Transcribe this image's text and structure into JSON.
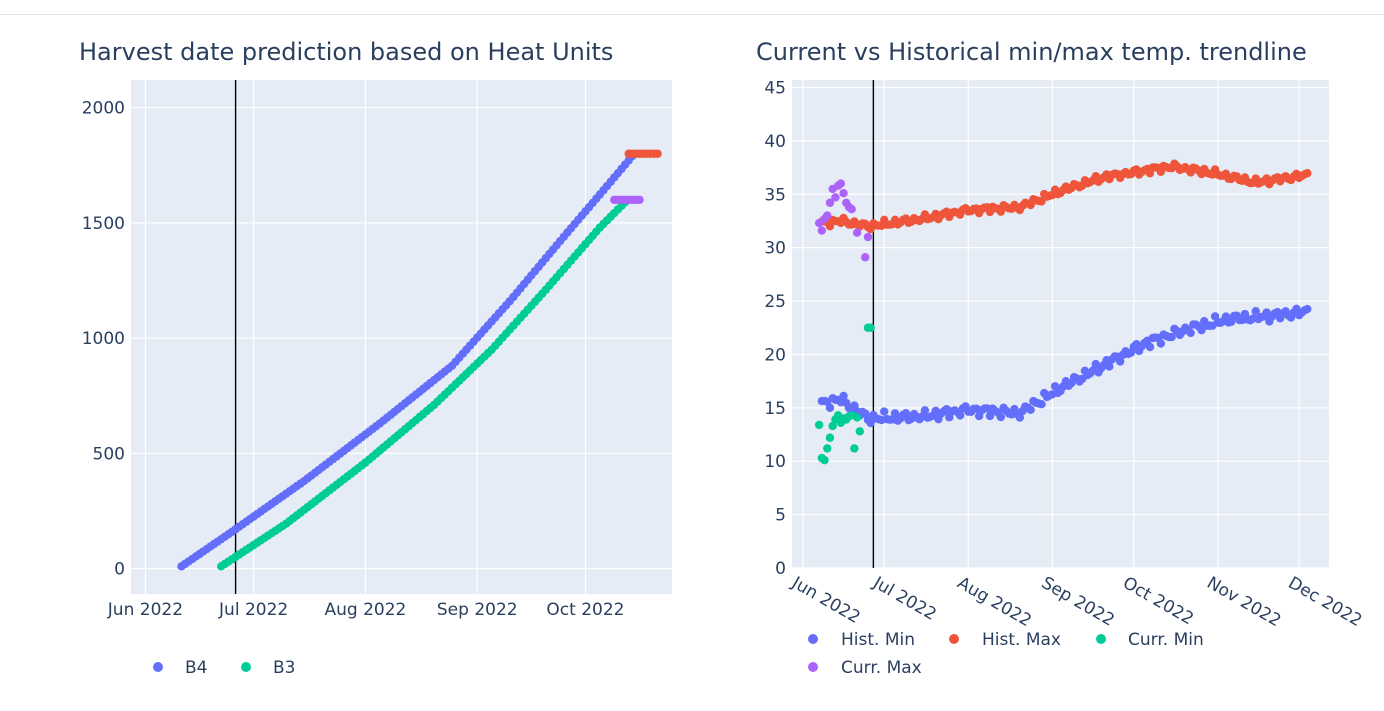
{
  "colors": {
    "plot_bg": "#e5ecf6",
    "grid": "#ffffff",
    "text": "#2a3f5f",
    "b4": "#636efa",
    "b3": "#00cc96",
    "hist_min": "#636efa",
    "hist_max": "#ef553b",
    "curr_min": "#00cc96",
    "curr_max": "#ab63fa",
    "marker_red": "#ef553b",
    "marker_purple": "#ab63fa"
  },
  "chart_data": [
    {
      "id": "heat_units",
      "type": "scatter",
      "title": "Harvest date prediction based on Heat Units",
      "x_type": "date",
      "x_range": [
        "2022-05-28",
        "2022-10-25"
      ],
      "ylim": [
        -110,
        2000
      ],
      "x_ticks": [
        {
          "date": "2022-06-01",
          "label": "Jun 2022"
        },
        {
          "date": "2022-07-01",
          "label": "Jul 2022"
        },
        {
          "date": "2022-08-01",
          "label": "Aug 2022"
        },
        {
          "date": "2022-09-01",
          "label": "Sep 2022"
        },
        {
          "date": "2022-10-01",
          "label": "Oct 2022"
        }
      ],
      "y_ticks": [
        0,
        500,
        1000,
        1500,
        2000
      ],
      "grid": true,
      "vline": "2022-06-26",
      "legend_position": "bottom-left",
      "series": [
        {
          "name": "B4",
          "color_key": "b4",
          "start": "2022-06-11",
          "points": [
            [
              "2022-06-11",
              10
            ],
            [
              "2022-06-25",
              160
            ],
            [
              "2022-07-15",
              380
            ],
            [
              "2022-08-05",
              630
            ],
            [
              "2022-08-25",
              880
            ],
            [
              "2022-09-10",
              1160
            ],
            [
              "2022-09-25",
              1440
            ],
            [
              "2022-10-07",
              1660
            ],
            [
              "2022-10-14",
              1790
            ]
          ]
        },
        {
          "name": "B3",
          "color_key": "b3",
          "start": "2022-06-22",
          "points": [
            [
              "2022-06-22",
              10
            ],
            [
              "2022-07-10",
              195
            ],
            [
              "2022-08-01",
              460
            ],
            [
              "2022-08-20",
              710
            ],
            [
              "2022-09-05",
              950
            ],
            [
              "2022-09-20",
              1210
            ],
            [
              "2022-10-05",
              1480
            ],
            [
              "2022-10-12",
              1590
            ]
          ]
        }
      ],
      "markers": [
        {
          "color_key": "marker_red",
          "y": 1800,
          "x_start": "2022-10-13",
          "x_end": "2022-10-21"
        },
        {
          "color_key": "marker_purple",
          "y": 1600,
          "x_start": "2022-10-09",
          "x_end": "2022-10-16"
        }
      ]
    },
    {
      "id": "temperature",
      "type": "scatter",
      "title": "Current vs Historical min/max temp. trendline",
      "x_type": "date",
      "x_range": [
        "2022-05-28",
        "2022-12-12"
      ],
      "ylim": [
        0,
        45
      ],
      "x_ticks": [
        {
          "date": "2022-06-01",
          "label": "Jun 2022"
        },
        {
          "date": "2022-07-01",
          "label": "Jul 2022"
        },
        {
          "date": "2022-08-01",
          "label": "Aug 2022"
        },
        {
          "date": "2022-09-01",
          "label": "Sep 2022"
        },
        {
          "date": "2022-10-01",
          "label": "Oct 2022"
        },
        {
          "date": "2022-11-01",
          "label": "Nov 2022"
        },
        {
          "date": "2022-12-01",
          "label": "Dec 2022"
        }
      ],
      "y_ticks": [
        0,
        5,
        10,
        15,
        20,
        25,
        30,
        35,
        40,
        45
      ],
      "grid": true,
      "vline": "2022-06-27",
      "legend_position": "bottom-left",
      "series": [
        {
          "name": "Hist. Min",
          "color_key": "hist_min",
          "start": "2022-06-08",
          "end": "2022-12-04",
          "anchors": [
            [
              "2022-06-08",
              15.4
            ],
            [
              "2022-06-15",
              15.8
            ],
            [
              "2022-06-25",
              14.0
            ],
            [
              "2022-07-15",
              14.2
            ],
            [
              "2022-08-01",
              14.8
            ],
            [
              "2022-08-20",
              14.5
            ],
            [
              "2022-09-05",
              17.0
            ],
            [
              "2022-09-20",
              19.0
            ],
            [
              "2022-10-05",
              21.0
            ],
            [
              "2022-10-20",
              22.3
            ],
            [
              "2022-11-05",
              23.3
            ],
            [
              "2022-11-20",
              23.6
            ],
            [
              "2022-12-04",
              24.0
            ]
          ],
          "noise": 0.6
        },
        {
          "name": "Hist. Max",
          "color_key": "hist_max",
          "start": "2022-06-08",
          "end": "2022-12-04",
          "anchors": [
            [
              "2022-06-08",
              32.3
            ],
            [
              "2022-06-15",
              32.5
            ],
            [
              "2022-06-25",
              32.0
            ],
            [
              "2022-07-15",
              32.7
            ],
            [
              "2022-08-01",
              33.5
            ],
            [
              "2022-08-20",
              33.8
            ],
            [
              "2022-09-05",
              35.4
            ],
            [
              "2022-09-20",
              36.6
            ],
            [
              "2022-10-05",
              37.2
            ],
            [
              "2022-10-15",
              37.6
            ],
            [
              "2022-10-30",
              37.0
            ],
            [
              "2022-11-15",
              36.1
            ],
            [
              "2022-12-04",
              36.8
            ]
          ],
          "noise": 0.4
        },
        {
          "name": "Curr. Min",
          "color_key": "curr_min",
          "points": [
            [
              "2022-06-07",
              13.4
            ],
            [
              "2022-06-08",
              10.3
            ],
            [
              "2022-06-09",
              10.1
            ],
            [
              "2022-06-10",
              11.2
            ],
            [
              "2022-06-11",
              12.2
            ],
            [
              "2022-06-12",
              13.3
            ],
            [
              "2022-06-13",
              13.9
            ],
            [
              "2022-06-14",
              14.3
            ],
            [
              "2022-06-15",
              13.6
            ],
            [
              "2022-06-16",
              14.0
            ],
            [
              "2022-06-17",
              13.9
            ],
            [
              "2022-06-18",
              14.2
            ],
            [
              "2022-06-19",
              14.3
            ],
            [
              "2022-06-20",
              11.2
            ],
            [
              "2022-06-21",
              14.1
            ],
            [
              "2022-06-22",
              12.8
            ],
            [
              "2022-06-25",
              22.5
            ],
            [
              "2022-06-26",
              22.5
            ]
          ]
        },
        {
          "name": "Curr. Max",
          "color_key": "curr_max",
          "points": [
            [
              "2022-06-07",
              32.3
            ],
            [
              "2022-06-08",
              31.6
            ],
            [
              "2022-06-09",
              32.7
            ],
            [
              "2022-06-10",
              33.0
            ],
            [
              "2022-06-11",
              34.2
            ],
            [
              "2022-06-12",
              35.5
            ],
            [
              "2022-06-13",
              34.7
            ],
            [
              "2022-06-14",
              35.8
            ],
            [
              "2022-06-15",
              36.0
            ],
            [
              "2022-06-16",
              35.1
            ],
            [
              "2022-06-17",
              34.2
            ],
            [
              "2022-06-18",
              33.8
            ],
            [
              "2022-06-19",
              33.6
            ],
            [
              "2022-06-21",
              31.4
            ],
            [
              "2022-06-24",
              29.1
            ],
            [
              "2022-06-25",
              31.0
            ]
          ]
        }
      ]
    }
  ]
}
